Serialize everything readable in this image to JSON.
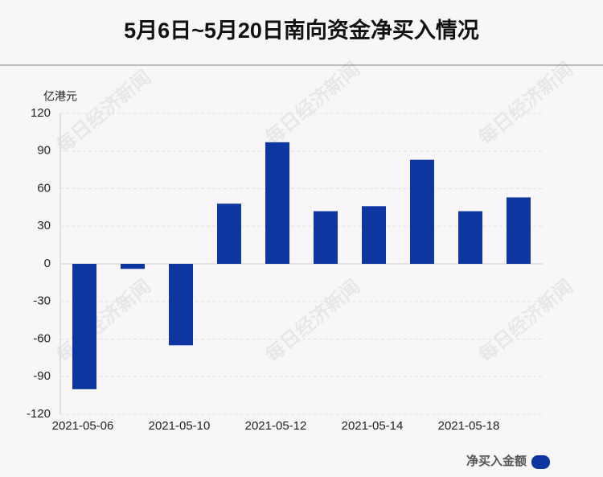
{
  "chart_data": {
    "type": "bar",
    "title": "5月6日~5月20日南向资金净买入情况",
    "y_label": "亿港元",
    "watermark": "每日经济新闻",
    "categories": [
      "2021-05-06",
      null,
      "2021-05-10",
      null,
      "2021-05-12",
      null,
      "2021-05-14",
      null,
      "2021-05-18",
      null
    ],
    "series": [
      {
        "name": "净买入金额",
        "color": "#0d36a1",
        "values": [
          -100,
          -4,
          -65,
          48,
          97,
          42,
          46,
          83,
          42,
          53
        ]
      }
    ],
    "ylim": [
      -120,
      120
    ],
    "yticks": [
      -120,
      -90,
      -60,
      -30,
      0,
      30,
      60,
      90,
      120
    ],
    "grid": true,
    "legend": "bottom-right"
  }
}
